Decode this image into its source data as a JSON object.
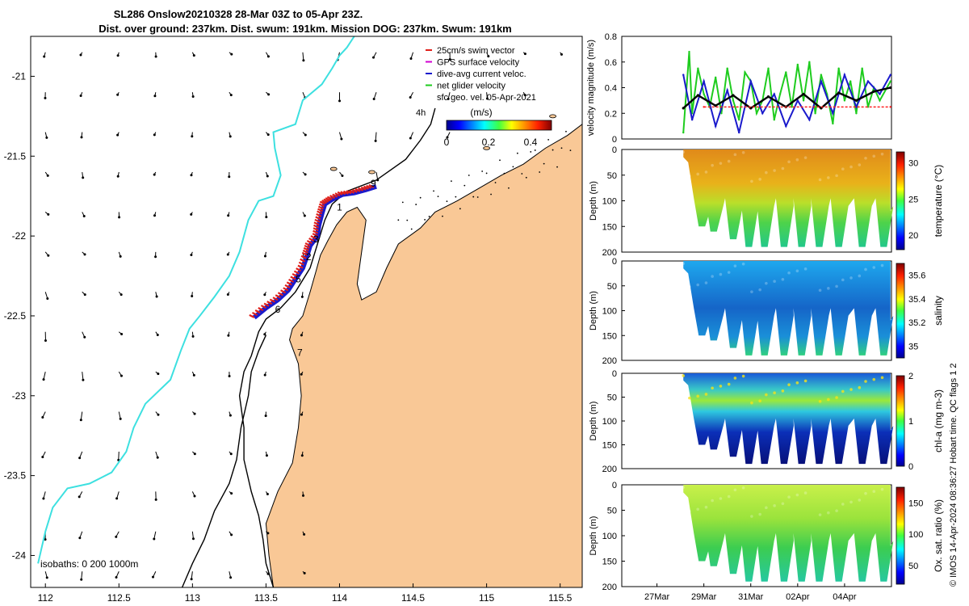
{
  "header": {
    "line1": "SL286 Onslow20210328 28-Mar 03Z to 05-Apr 23Z.",
    "line2": "Dist. over ground: 237km. Dist. swum: 191km. Mission DOG: 237km. Swum: 191km"
  },
  "footer": {
    "credit": "© IMOS 14-Apr-2024 08:36:27 Hobart time. QC flags 1  2"
  },
  "colors": {
    "land": "#f9c896",
    "coast_curve": "#3de0e0",
    "swim_vector": "#e0201a",
    "gps_velocity": "#d100d1",
    "dive_avg": "#1a1acc",
    "net_glider": "#1ecc1e"
  },
  "chart_data": [
    {
      "type": "map",
      "title": "SL286 Onslow20210328 28-Mar 03Z to 05-Apr 23Z.",
      "xlabel": "",
      "ylabel": "",
      "xlim": [
        111.9,
        115.65
      ],
      "ylim": [
        -24.2,
        -20.75
      ],
      "x_ticks": [
        "112",
        "112.5",
        "113",
        "113.5",
        "114",
        "114.5",
        "115",
        "115.5"
      ],
      "x_tick_values": [
        112,
        112.5,
        113,
        113.5,
        114,
        114.5,
        115,
        115.5
      ],
      "y_ticks": [
        "-21",
        "-21.5",
        "-22",
        "-22.5",
        "-23",
        "-23.5",
        "-24"
      ],
      "y_tick_values": [
        -21,
        -21.5,
        -22,
        -22.5,
        -23,
        -23.5,
        -24
      ],
      "legend": [
        "25cm/s swim vector",
        "GPS surface velocity",
        "dive-avg current veloc.",
        "net glider velocity",
        "sfc geo. vel. 05-Apr-2021"
      ],
      "colorbar_label": "(m/s)",
      "colorbar_ticks": [
        "0",
        "0.2",
        "0.4"
      ],
      "colorbar_range": [
        0,
        0.5
      ],
      "hour_marker": "4h",
      "isobaths_text": "isobaths: 0   200  1000m",
      "day_markers": [
        {
          "label": "9",
          "lon": 114.23,
          "lat": -21.69
        },
        {
          "label": "1",
          "lon": 114.0,
          "lat": -21.84
        },
        {
          "label": "3",
          "lon": 113.84,
          "lat": -22.04
        },
        {
          "label": "2",
          "lon": 113.79,
          "lat": -22.15
        },
        {
          "label": "5",
          "lon": 113.72,
          "lat": -22.29
        },
        {
          "label": "6",
          "lon": 113.58,
          "lat": -22.48
        },
        {
          "label": "7",
          "lon": 113.73,
          "lat": -22.75
        }
      ],
      "glider_track": [
        [
          113.42,
          -22.51
        ],
        [
          113.5,
          -22.45
        ],
        [
          113.58,
          -22.4
        ],
        [
          113.65,
          -22.34
        ],
        [
          113.7,
          -22.27
        ],
        [
          113.75,
          -22.2
        ],
        [
          113.78,
          -22.12
        ],
        [
          113.8,
          -22.06
        ],
        [
          113.85,
          -22.0
        ],
        [
          113.86,
          -21.93
        ],
        [
          113.88,
          -21.86
        ],
        [
          113.9,
          -21.8
        ],
        [
          113.95,
          -21.77
        ],
        [
          114.02,
          -21.74
        ],
        [
          114.1,
          -21.73
        ],
        [
          114.18,
          -21.71
        ],
        [
          114.25,
          -21.69
        ]
      ],
      "coast_curve": [
        [
          111.95,
          -24.05
        ],
        [
          112.0,
          -23.85
        ],
        [
          112.05,
          -23.7
        ],
        [
          112.15,
          -23.58
        ],
        [
          112.3,
          -23.55
        ],
        [
          112.45,
          -23.48
        ],
        [
          112.55,
          -23.35
        ],
        [
          112.6,
          -23.2
        ],
        [
          112.68,
          -23.05
        ],
        [
          112.85,
          -22.9
        ],
        [
          112.92,
          -22.72
        ],
        [
          112.98,
          -22.58
        ],
        [
          113.05,
          -22.5
        ],
        [
          113.15,
          -22.38
        ],
        [
          113.25,
          -22.25
        ],
        [
          113.32,
          -22.1
        ],
        [
          113.38,
          -21.9
        ],
        [
          113.45,
          -21.78
        ],
        [
          113.55,
          -21.75
        ],
        [
          113.6,
          -21.62
        ],
        [
          113.56,
          -21.45
        ],
        [
          113.55,
          -21.35
        ],
        [
          113.7,
          -21.3
        ],
        [
          113.75,
          -21.15
        ],
        [
          113.88,
          -21.05
        ],
        [
          113.95,
          -20.95
        ],
        [
          114.0,
          -20.87
        ],
        [
          114.05,
          -20.82
        ],
        [
          114.1,
          -20.75
        ]
      ],
      "isobath_200": [
        [
          113.55,
          -24.2
        ],
        [
          113.5,
          -24.05
        ],
        [
          113.48,
          -23.9
        ],
        [
          113.45,
          -23.75
        ],
        [
          113.4,
          -23.6
        ],
        [
          113.35,
          -23.4
        ],
        [
          113.35,
          -23.2
        ],
        [
          113.32,
          -23.0
        ],
        [
          113.35,
          -22.85
        ],
        [
          113.4,
          -22.75
        ],
        [
          113.45,
          -22.6
        ],
        [
          113.5,
          -22.52
        ],
        [
          113.6,
          -22.45
        ],
        [
          113.7,
          -22.35
        ],
        [
          113.8,
          -22.2
        ],
        [
          113.85,
          -22.05
        ],
        [
          113.9,
          -21.9
        ],
        [
          113.95,
          -21.8
        ],
        [
          114.05,
          -21.72
        ],
        [
          114.25,
          -21.65
        ],
        [
          114.45,
          -21.52
        ],
        [
          114.55,
          -21.4
        ],
        [
          114.62,
          -21.3
        ],
        [
          114.65,
          -21.2
        ]
      ],
      "isobath_1000": [
        [
          112.93,
          -24.2
        ],
        [
          113.0,
          -24.05
        ],
        [
          113.08,
          -23.9
        ],
        [
          113.15,
          -23.72
        ],
        [
          113.25,
          -23.55
        ],
        [
          113.3,
          -23.4
        ],
        [
          113.33,
          -23.2
        ],
        [
          113.38,
          -23.0
        ],
        [
          113.4,
          -22.85
        ],
        [
          113.45,
          -22.72
        ],
        [
          113.5,
          -22.62
        ]
      ]
    },
    {
      "type": "line",
      "title": "",
      "xlabel": "",
      "ylabel": "velocity magnitude (m/s)",
      "ylim": [
        0,
        0.8
      ],
      "y_ticks": [
        "0",
        "0.2",
        "0.4",
        "0.6",
        "0.8"
      ],
      "y_tick_values": [
        0,
        0.2,
        0.4,
        0.6,
        0.8
      ],
      "xlim": [
        "2021-03-25T12:00",
        "2021-04-06T00:00"
      ],
      "series": [
        {
          "name": "net glider velocity",
          "color": "#1ecc1e",
          "x": [
            "2021-03-28T03:00",
            "2021-03-28T09:00",
            "2021-03-28T12:00",
            "2021-03-28T18:00",
            "2021-03-29T00:00",
            "2021-03-29T06:00",
            "2021-03-29T12:00",
            "2021-03-29T18:00",
            "2021-03-30T00:00",
            "2021-03-30T06:00",
            "2021-03-30T12:00",
            "2021-03-30T18:00",
            "2021-03-31T00:00",
            "2021-03-31T06:00",
            "2021-03-31T12:00",
            "2021-03-31T18:00",
            "2021-04-01T00:00",
            "2021-04-01T06:00",
            "2021-04-01T12:00",
            "2021-04-01T18:00",
            "2021-04-02T00:00",
            "2021-04-02T06:00",
            "2021-04-02T12:00",
            "2021-04-02T18:00",
            "2021-04-03T00:00",
            "2021-04-03T06:00",
            "2021-04-03T12:00",
            "2021-04-03T18:00",
            "2021-04-04T00:00",
            "2021-04-04T06:00",
            "2021-04-04T12:00",
            "2021-04-04T18:00",
            "2021-04-05T00:00",
            "2021-04-05T06:00",
            "2021-04-05T12:00",
            "2021-04-05T23:00"
          ],
          "values": [
            0.05,
            0.68,
            0.2,
            0.55,
            0.35,
            0.25,
            0.48,
            0.2,
            0.55,
            0.3,
            0.15,
            0.52,
            0.45,
            0.2,
            0.3,
            0.55,
            0.15,
            0.35,
            0.52,
            0.25,
            0.58,
            0.3,
            0.6,
            0.2,
            0.5,
            0.35,
            0.12,
            0.55,
            0.3,
            0.45,
            0.2,
            0.55,
            0.25,
            0.4,
            0.3,
            0.45
          ]
        },
        {
          "name": "dive-avg current veloc.",
          "color": "#1a1acc",
          "x": [
            "2021-03-28T03:00",
            "2021-03-28T12:00",
            "2021-03-29T00:00",
            "2021-03-29T12:00",
            "2021-03-30T00:00",
            "2021-03-30T12:00",
            "2021-03-31T00:00",
            "2021-03-31T12:00",
            "2021-04-01T00:00",
            "2021-04-01T12:00",
            "2021-04-02T00:00",
            "2021-04-02T12:00",
            "2021-04-03T00:00",
            "2021-04-03T12:00",
            "2021-04-04T00:00",
            "2021-04-04T12:00",
            "2021-04-05T00:00",
            "2021-04-05T12:00",
            "2021-04-05T23:00"
          ],
          "values": [
            0.5,
            0.15,
            0.45,
            0.1,
            0.38,
            0.05,
            0.45,
            0.2,
            0.35,
            0.1,
            0.3,
            0.15,
            0.45,
            0.2,
            0.5,
            0.25,
            0.45,
            0.35,
            0.5
          ]
        },
        {
          "name": "sfc geo. vel.",
          "color": "#000000",
          "x": [
            "2021-03-28T03:00",
            "2021-03-28T18:00",
            "2021-03-29T12:00",
            "2021-03-30T06:00",
            "2021-03-31T00:00",
            "2021-03-31T18:00",
            "2021-04-01T12:00",
            "2021-04-02T06:00",
            "2021-04-03T00:00",
            "2021-04-03T18:00",
            "2021-04-04T12:00",
            "2021-04-05T06:00",
            "2021-04-05T23:00"
          ],
          "values": [
            0.24,
            0.34,
            0.26,
            0.34,
            0.24,
            0.33,
            0.25,
            0.35,
            0.24,
            0.36,
            0.3,
            0.37,
            0.4
          ]
        },
        {
          "name": "dive-avg mean",
          "color": "#ff2020",
          "x": [
            "2021-03-29T00:00",
            "2021-04-05T23:00"
          ],
          "values": [
            0.25,
            0.25
          ]
        }
      ]
    },
    {
      "type": "heatmap",
      "title": "",
      "ylabel": "Depth (m)",
      "colorbar_label": "temperature (°C)",
      "colorbar_ticks": [
        "20",
        "25",
        "30"
      ],
      "colorbar_range": [
        18,
        31.5
      ],
      "ylim": [
        0,
        200
      ],
      "y_ticks": [
        "0",
        "50",
        "100",
        "150",
        "200"
      ],
      "y_tick_values": [
        0,
        50,
        100,
        150,
        200
      ]
    },
    {
      "type": "heatmap",
      "title": "",
      "ylabel": "Depth (m)",
      "colorbar_label": "salinity",
      "colorbar_ticks": [
        "35",
        "35.2",
        "35.4",
        "35.6"
      ],
      "colorbar_range": [
        34.9,
        35.7
      ],
      "ylim": [
        0,
        200
      ],
      "y_ticks": [
        "0",
        "50",
        "100",
        "150",
        "200"
      ],
      "y_tick_values": [
        0,
        50,
        100,
        150,
        200
      ]
    },
    {
      "type": "heatmap",
      "title": "",
      "ylabel": "Depth (m)",
      "colorbar_label": "chl-a (mg m-3)",
      "colorbar_ticks": [
        "0",
        "1",
        "2"
      ],
      "colorbar_range": [
        0,
        2
      ],
      "ylim": [
        0,
        200
      ],
      "y_ticks": [
        "0",
        "50",
        "100",
        "150",
        "200"
      ],
      "y_tick_values": [
        0,
        50,
        100,
        150,
        200
      ]
    },
    {
      "type": "heatmap",
      "title": "",
      "ylabel": "Depth (m)",
      "colorbar_label": "Ox. sat. ratio (%)",
      "colorbar_ticks": [
        "50",
        "100",
        "150"
      ],
      "colorbar_range": [
        20,
        175
      ],
      "ylim": [
        0,
        200
      ],
      "y_ticks": [
        "0",
        "50",
        "100",
        "150",
        "200"
      ],
      "y_tick_values": [
        0,
        50,
        100,
        150,
        200
      ],
      "x_ticks": [
        "27Mar",
        "29Mar",
        "31Mar",
        "02Apr",
        "04Apr"
      ],
      "x_tick_values": [
        "2021-03-27",
        "2021-03-29",
        "2021-03-31",
        "2021-04-02",
        "2021-04-04"
      ]
    }
  ]
}
